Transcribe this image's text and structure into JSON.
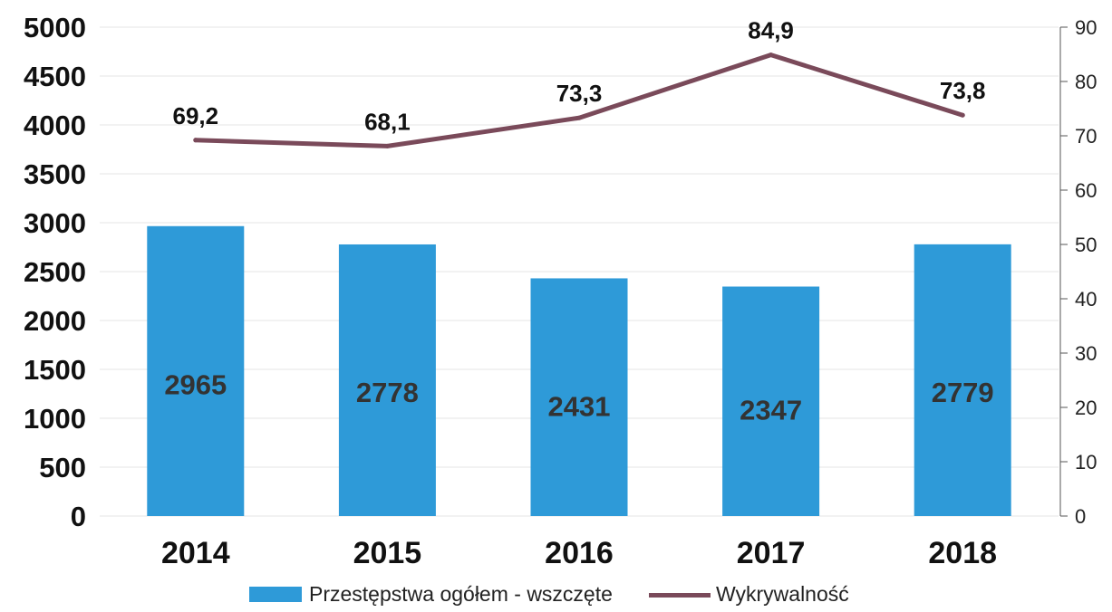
{
  "chart_data": {
    "type": "bar",
    "categories": [
      "2014",
      "2015",
      "2016",
      "2017",
      "2018"
    ],
    "series": [
      {
        "name": "Przestępstwa ogółem - wszczęte",
        "type": "bar",
        "axis": "left",
        "values": [
          2965,
          2778,
          2431,
          2347,
          2779
        ],
        "labels": [
          "2965",
          "2778",
          "2431",
          "2347",
          "2779"
        ],
        "color": "#2e9ad8"
      },
      {
        "name": "Wykrywalność",
        "type": "line",
        "axis": "right",
        "values": [
          69.2,
          68.1,
          73.3,
          84.9,
          73.8
        ],
        "labels": [
          "69,2",
          "68,1",
          "73,3",
          "84,9",
          "73,8"
        ],
        "color": "#7a4a5a"
      }
    ],
    "y_left": {
      "ylim": [
        0,
        5000
      ],
      "ticks": [
        "0",
        "500",
        "1000",
        "1500",
        "2000",
        "2500",
        "3000",
        "3500",
        "4000",
        "4500",
        "5000"
      ]
    },
    "y_right": {
      "ylim": [
        0,
        90
      ],
      "ticks": [
        "0",
        "10",
        "20",
        "30",
        "40",
        "50",
        "60",
        "70",
        "80",
        "90"
      ]
    },
    "title": "",
    "xlabel": "",
    "ylabel": "",
    "grid": true,
    "legend_position": "bottom"
  }
}
